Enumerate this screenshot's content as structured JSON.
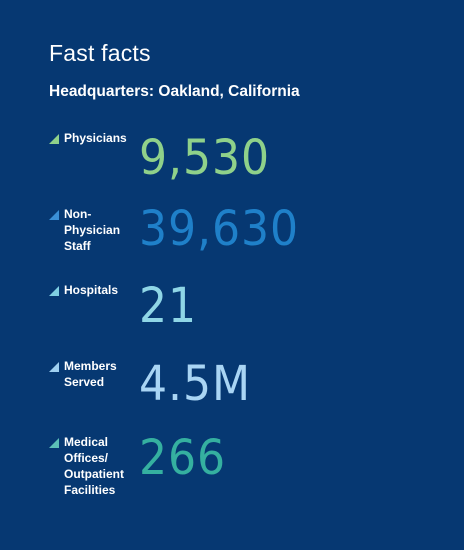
{
  "header": {
    "title": "Fast facts",
    "subtitle": "Headquarters: Oakland, California"
  },
  "facts": [
    {
      "label": "Physicians",
      "value": "9,530",
      "value_color": "#8fd18a",
      "marker_color": "#8fd18a"
    },
    {
      "label": "Non-\nPhysician\nStaff",
      "value": "39,630",
      "value_color": "#1f80c9",
      "marker_color": "#3a8fd6"
    },
    {
      "label": "Hospitals",
      "value": "21",
      "value_color": "#8fd6e6",
      "marker_color": "#7fd0e3"
    },
    {
      "label": "Members\nServed",
      "value": "4.5M",
      "value_color": "#a9d5f4",
      "marker_color": "#9fd0f0"
    },
    {
      "label": "Medical\nOffices/\nOutpatient\nFacilities",
      "value": "266",
      "value_color": "#35b0a0",
      "marker_color": "#5cc1b8"
    }
  ]
}
